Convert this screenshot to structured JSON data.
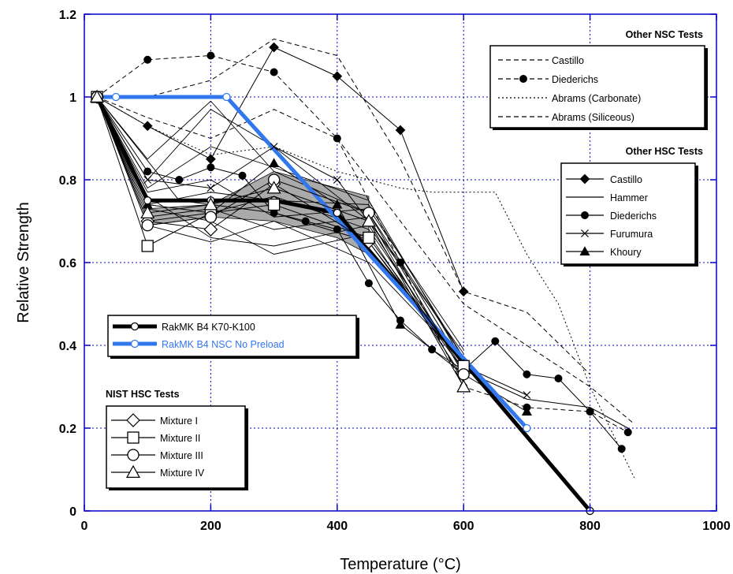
{
  "chart_data": {
    "type": "line",
    "xlabel": "Temperature (°C)",
    "ylabel": "Relative Strength",
    "xlim": [
      0,
      1000
    ],
    "ylim": [
      0,
      1.2
    ],
    "xticks": [
      "0",
      "200",
      "400",
      "600",
      "800",
      "1000"
    ],
    "yticks": [
      "0",
      "0.2",
      "0.4",
      "0.6",
      "0.8",
      "1",
      "1.2"
    ],
    "grid": true,
    "axis_color": "#0000cc",
    "grid_color": "#0000cc",
    "groups": {
      "nsc": {
        "title": "Other NSC Tests"
      },
      "hsc": {
        "title": "Other HSC Tests"
      },
      "nist": {
        "title": "NIST HSC Tests"
      }
    },
    "series": [
      {
        "name": "Castillo",
        "group": "nsc",
        "style": "dash",
        "marker": "none",
        "color": "#000000",
        "x": [
          20,
          100,
          200,
          300,
          400,
          500,
          600,
          700,
          800
        ],
        "y": [
          1.0,
          1.0,
          1.04,
          1.14,
          1.1,
          0.85,
          0.53,
          0.48,
          0.33
        ]
      },
      {
        "name": "Diederichs",
        "group": "nsc",
        "style": "dash",
        "marker": "circle-filled",
        "color": "#000000",
        "x": [
          20,
          100,
          200,
          300,
          400,
          500,
          600,
          700,
          800,
          860
        ],
        "y": [
          1.0,
          1.09,
          1.1,
          1.06,
          0.9,
          0.6,
          0.3,
          0.25,
          0.24,
          0.19
        ]
      },
      {
        "name": "Abrams (Carbonate)",
        "group": "nsc",
        "style": "dot",
        "marker": "none",
        "color": "#000000",
        "x": [
          20,
          100,
          200,
          300,
          400,
          500,
          550,
          650,
          700,
          750,
          800,
          870
        ],
        "y": [
          1.0,
          0.93,
          0.86,
          0.88,
          0.82,
          0.78,
          0.77,
          0.77,
          0.62,
          0.5,
          0.3,
          0.08
        ]
      },
      {
        "name": "Abrams (Siliceous)",
        "group": "nsc",
        "style": "dash",
        "marker": "none",
        "color": "#000000",
        "x": [
          20,
          100,
          200,
          300,
          400,
          500,
          600,
          700,
          800,
          870
        ],
        "y": [
          1.0,
          0.95,
          0.9,
          0.97,
          0.9,
          0.7,
          0.5,
          0.4,
          0.3,
          0.21
        ]
      },
      {
        "name": "Castillo",
        "group": "hsc",
        "style": "solid",
        "marker": "diamond-filled",
        "color": "#000000",
        "x": [
          20,
          100,
          200,
          300,
          400,
          500,
          600
        ],
        "y": [
          1.0,
          0.93,
          0.85,
          1.12,
          1.05,
          0.92,
          0.53
        ]
      },
      {
        "name": "Hammer",
        "group": "hsc",
        "style": "solid",
        "marker": "none",
        "color": "#000000",
        "x": [
          20,
          150,
          300,
          450,
          600,
          700,
          800,
          860
        ],
        "y": [
          1.0,
          0.75,
          0.72,
          0.65,
          0.34,
          0.27,
          0.25,
          0.2
        ]
      },
      {
        "name": "Diederichs",
        "group": "hsc",
        "style": "solid",
        "marker": "circle-filled",
        "color": "#000000",
        "x": [
          20,
          100,
          150,
          200,
          250,
          300,
          350,
          400,
          450,
          500,
          550,
          600,
          650,
          700,
          750,
          800,
          850
        ],
        "y": [
          1.0,
          0.82,
          0.8,
          0.83,
          0.81,
          0.72,
          0.7,
          0.68,
          0.55,
          0.46,
          0.39,
          0.34,
          0.41,
          0.33,
          0.32,
          0.24,
          0.15
        ]
      },
      {
        "name": "Furumura",
        "group": "hsc",
        "style": "solid",
        "marker": "x",
        "color": "#000000",
        "x": [
          20,
          100,
          200,
          300,
          400,
          500,
          600,
          700
        ],
        "y": [
          1.0,
          0.8,
          0.78,
          0.88,
          0.8,
          0.6,
          0.35,
          0.28
        ]
      },
      {
        "name": "Khoury",
        "group": "hsc",
        "style": "solid",
        "marker": "triangle-filled",
        "color": "#000000",
        "x": [
          20,
          100,
          200,
          300,
          400,
          500,
          600,
          700
        ],
        "y": [
          1.0,
          0.74,
          0.72,
          0.84,
          0.74,
          0.45,
          0.33,
          0.24
        ]
      },
      {
        "name": "RakMK B4 K70-K100",
        "group": "main",
        "style": "thick",
        "marker": "circle-open",
        "color": "#000000",
        "x": [
          20,
          100,
          200,
          300,
          400,
          800
        ],
        "y": [
          1.0,
          0.75,
          0.75,
          0.75,
          0.72,
          0.0
        ]
      },
      {
        "name": "RakMK B4 NSC No Preload",
        "group": "main",
        "style": "thick",
        "marker": "circle-open",
        "color": "#3377ee",
        "x": [
          20,
          50,
          225,
          700
        ],
        "y": [
          1.0,
          1.0,
          1.0,
          0.2
        ]
      },
      {
        "name": "Mixture I",
        "group": "nist",
        "style": "solid",
        "marker": "diamond-open",
        "color": "#000000",
        "x": [
          20,
          100,
          200,
          300,
          450,
          600
        ],
        "y": [
          1.0,
          0.7,
          0.68,
          0.79,
          0.65,
          0.35
        ]
      },
      {
        "name": "Mixture II",
        "group": "nist",
        "style": "solid",
        "marker": "square-open",
        "color": "#000000",
        "x": [
          20,
          100,
          200,
          300,
          450,
          600
        ],
        "y": [
          1.0,
          0.64,
          0.72,
          0.74,
          0.66,
          0.35
        ]
      },
      {
        "name": "Mixture III",
        "group": "nist",
        "style": "solid",
        "marker": "circle-open",
        "color": "#000000",
        "x": [
          20,
          100,
          200,
          300,
          450,
          600
        ],
        "y": [
          1.0,
          0.69,
          0.71,
          0.8,
          0.72,
          0.33
        ]
      },
      {
        "name": "Mixture IV",
        "group": "nist",
        "style": "solid",
        "marker": "triangle-open",
        "color": "#000000",
        "x": [
          20,
          100,
          200,
          300,
          450,
          600
        ],
        "y": [
          1.0,
          0.72,
          0.74,
          0.78,
          0.7,
          0.3
        ]
      }
    ],
    "extra_lines": {
      "style": "solid",
      "color": "#000000",
      "lines": [
        {
          "x": [
            20,
            100,
            200,
            300,
            450,
            600
          ],
          "y": [
            1.0,
            0.8,
            0.97,
            0.88,
            0.7,
            0.38
          ]
        },
        {
          "x": [
            20,
            100,
            200,
            300,
            450,
            600
          ],
          "y": [
            1.0,
            0.85,
            0.99,
            0.82,
            0.72,
            0.37
          ]
        },
        {
          "x": [
            20,
            100,
            200,
            300,
            450,
            600
          ],
          "y": [
            1.0,
            0.78,
            0.88,
            0.83,
            0.75,
            0.36
          ]
        },
        {
          "x": [
            20,
            100,
            200,
            300,
            450,
            600
          ],
          "y": [
            1.0,
            0.76,
            0.66,
            0.64,
            0.69,
            0.34
          ]
        },
        {
          "x": [
            20,
            100,
            200,
            300,
            450,
            600
          ],
          "y": [
            1.0,
            0.73,
            0.7,
            0.62,
            0.67,
            0.32
          ]
        },
        {
          "x": [
            20,
            100,
            200,
            300,
            450,
            600
          ],
          "y": [
            1.0,
            0.71,
            0.73,
            0.68,
            0.71,
            0.31
          ]
        },
        {
          "x": [
            20,
            100,
            200,
            300,
            450,
            600
          ],
          "y": [
            1.0,
            0.69,
            0.65,
            0.7,
            0.6,
            0.36
          ]
        },
        {
          "x": [
            20,
            100,
            200,
            300,
            450,
            600
          ],
          "y": [
            1.0,
            0.77,
            0.8,
            0.71,
            0.73,
            0.39
          ]
        },
        {
          "x": [
            20,
            100,
            200,
            300,
            450,
            600
          ],
          "y": [
            1.0,
            0.74,
            0.77,
            0.75,
            0.74,
            0.37
          ]
        },
        {
          "x": [
            20,
            100,
            200,
            300,
            450,
            600
          ],
          "y": [
            1.0,
            0.7,
            0.72,
            0.76,
            0.68,
            0.35
          ]
        }
      ]
    },
    "band": {
      "color": "#aaaaaa",
      "x": [
        100,
        200,
        300,
        400,
        450
      ],
      "y_lower": [
        0.69,
        0.71,
        0.7,
        0.66,
        0.62
      ],
      "y_upper": [
        0.73,
        0.74,
        0.82,
        0.78,
        0.76
      ]
    }
  }
}
